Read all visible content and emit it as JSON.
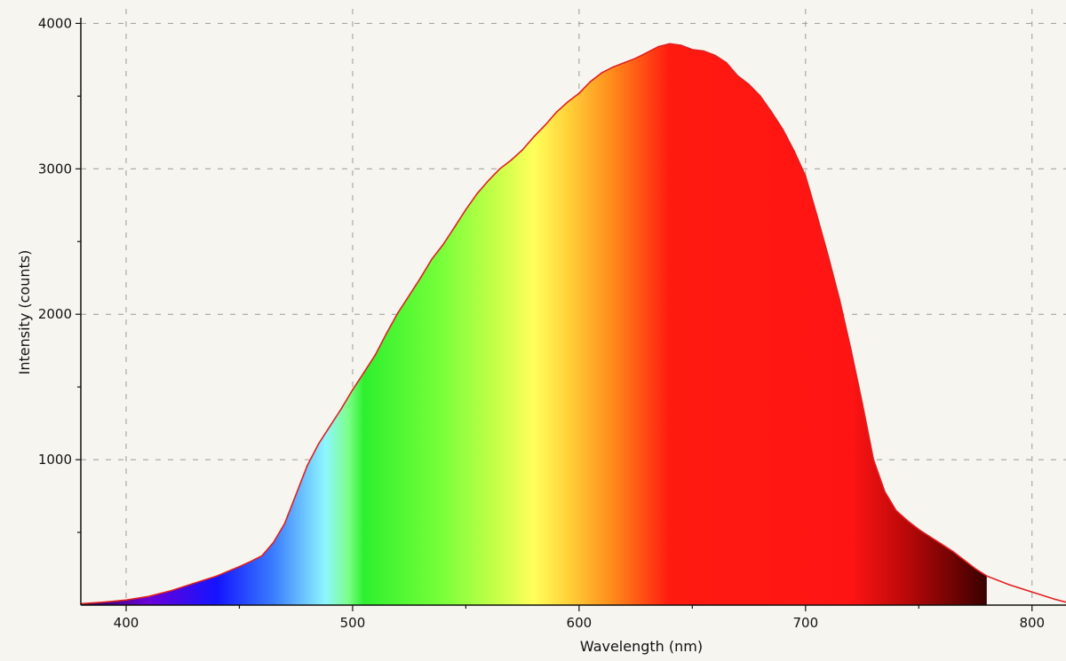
{
  "chart_data": {
    "type": "area",
    "title": "",
    "xlabel": "Wavelength (nm)",
    "ylabel": "Intensity (counts)",
    "xlim": [
      380,
      815
    ],
    "ylim": [
      0,
      4100
    ],
    "x_ticks": [
      400,
      500,
      600,
      700,
      800
    ],
    "x_tick_labels": [
      "400",
      "500",
      "600",
      "700",
      "800"
    ],
    "y_ticks": [
      1000,
      2000,
      3000,
      4000
    ],
    "y_tick_labels": [
      "1000",
      "2000",
      "3000",
      "4000"
    ],
    "grid": true,
    "legend": "none",
    "fill_range_nm": [
      380,
      780
    ],
    "line_color": "#e02020",
    "spectrum_colors": [
      {
        "nm": 380,
        "color": "#2a0050"
      },
      {
        "nm": 410,
        "color": "#6a00d8"
      },
      {
        "nm": 440,
        "color": "#1414ff"
      },
      {
        "nm": 465,
        "color": "#3a7cff"
      },
      {
        "nm": 488,
        "color": "#8ef6ff"
      },
      {
        "nm": 498,
        "color": "#7cff8a"
      },
      {
        "nm": 505,
        "color": "#2ef02e"
      },
      {
        "nm": 540,
        "color": "#7aff3a"
      },
      {
        "nm": 565,
        "color": "#cbff4a"
      },
      {
        "nm": 580,
        "color": "#ffff5a"
      },
      {
        "nm": 595,
        "color": "#ffd23a"
      },
      {
        "nm": 615,
        "color": "#ff8a1a"
      },
      {
        "nm": 640,
        "color": "#ff1a10"
      },
      {
        "nm": 720,
        "color": "#ff1414"
      },
      {
        "nm": 745,
        "color": "#b80808"
      },
      {
        "nm": 780,
        "color": "#3a0000"
      }
    ],
    "x": [
      380,
      390,
      400,
      410,
      420,
      430,
      440,
      450,
      455,
      460,
      465,
      470,
      475,
      480,
      485,
      490,
      495,
      500,
      505,
      510,
      515,
      520,
      525,
      530,
      535,
      540,
      545,
      550,
      555,
      560,
      565,
      570,
      575,
      580,
      585,
      590,
      595,
      600,
      605,
      610,
      615,
      620,
      625,
      630,
      635,
      640,
      645,
      650,
      655,
      660,
      665,
      670,
      675,
      680,
      685,
      690,
      695,
      700,
      705,
      710,
      715,
      720,
      725,
      730,
      735,
      740,
      745,
      750,
      755,
      760,
      765,
      770,
      775,
      780,
      790,
      800,
      810,
      815
    ],
    "y": [
      10,
      20,
      35,
      60,
      100,
      150,
      200,
      265,
      300,
      340,
      430,
      560,
      760,
      960,
      1110,
      1230,
      1350,
      1480,
      1600,
      1720,
      1870,
      2010,
      2130,
      2250,
      2380,
      2480,
      2600,
      2720,
      2830,
      2920,
      3000,
      3060,
      3130,
      3220,
      3300,
      3390,
      3460,
      3520,
      3600,
      3660,
      3700,
      3730,
      3760,
      3800,
      3840,
      3860,
      3850,
      3820,
      3810,
      3780,
      3730,
      3640,
      3580,
      3500,
      3390,
      3270,
      3120,
      2950,
      2680,
      2400,
      2100,
      1760,
      1390,
      1000,
      780,
      650,
      580,
      520,
      470,
      420,
      370,
      310,
      250,
      200,
      140,
      90,
      40,
      20
    ]
  }
}
